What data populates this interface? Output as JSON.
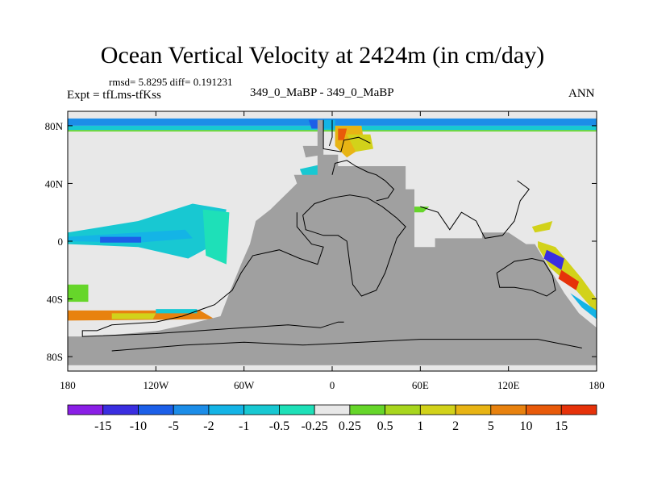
{
  "chart_data": {
    "type": "heatmap",
    "title": "Ocean Vertical Velocity at 2424m (in cm/day)",
    "stats_text": "rmsd= 5.8295  diff= 0.191231",
    "left_label": "Expt = tfLms-tfKss",
    "center_label": "349_0_MaBP - 349_0_MaBP",
    "right_label": "ANN",
    "x_axis": {
      "range": [
        -180,
        180
      ],
      "ticks": [
        -180,
        -120,
        -60,
        0,
        60,
        120,
        180
      ],
      "tick_labels": [
        "180",
        "120W",
        "60W",
        "0",
        "60E",
        "120E",
        "180"
      ]
    },
    "y_axis": {
      "range": [
        -90,
        90
      ],
      "ticks": [
        80,
        40,
        0,
        -40,
        -80
      ],
      "tick_labels": [
        "80N",
        "40N",
        "0",
        "40S",
        "80S"
      ]
    },
    "colorbar": {
      "colors": [
        "#8a1fe6",
        "#3a2ee0",
        "#1c5fe8",
        "#1c8de8",
        "#14b4e6",
        "#18c8d2",
        "#1ee0b8",
        "#e8e8e8",
        "#66d62a",
        "#a8d61e",
        "#d2d21a",
        "#e8b414",
        "#e8820f",
        "#e85a0a",
        "#e6320a"
      ],
      "labels": [
        "-15",
        "-10",
        "-5",
        "-2",
        "-1",
        "-0.5",
        "-0.25",
        "0.25",
        "0.5",
        "1",
        "2",
        "5",
        "10",
        "15"
      ]
    },
    "colors": {
      "land": "#a0a0a0",
      "ocean_neutral": "#e8e8e8",
      "coast": "#000000"
    }
  }
}
